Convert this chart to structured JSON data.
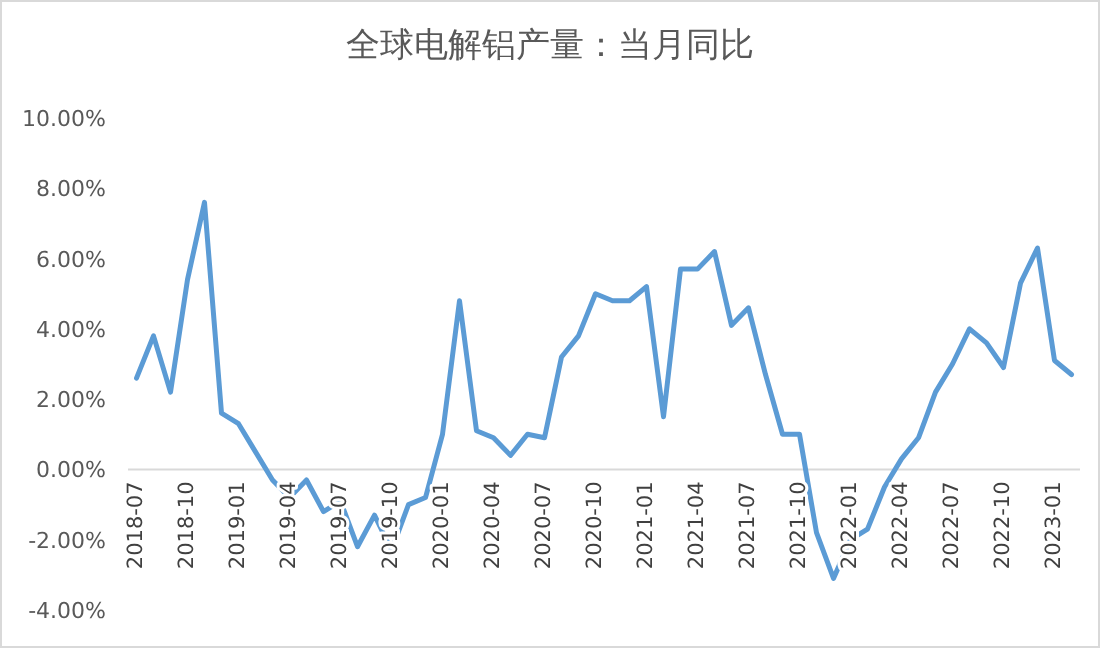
{
  "chart_data": {
    "type": "line",
    "title": "全球电解铝产量：当月同比",
    "x": [
      "2018-07",
      "2018-08",
      "2018-09",
      "2018-10",
      "2018-11",
      "2018-12",
      "2019-01",
      "2019-02",
      "2019-03",
      "2019-04",
      "2019-05",
      "2019-06",
      "2019-07",
      "2019-08",
      "2019-09",
      "2019-10",
      "2019-11",
      "2019-12",
      "2020-01",
      "2020-02",
      "2020-03",
      "2020-04",
      "2020-05",
      "2020-06",
      "2020-07",
      "2020-08",
      "2020-09",
      "2020-10",
      "2020-11",
      "2020-12",
      "2021-01",
      "2021-02",
      "2021-03",
      "2021-04",
      "2021-05",
      "2021-06",
      "2021-07",
      "2021-08",
      "2021-09",
      "2021-10",
      "2021-11",
      "2021-12",
      "2022-01",
      "2022-02",
      "2022-03",
      "2022-04",
      "2022-05",
      "2022-06",
      "2022-07",
      "2022-08",
      "2022-09",
      "2022-10",
      "2022-11",
      "2022-12",
      "2023-01",
      "2023-02"
    ],
    "series": [
      {
        "color": "#5b9bd5",
        "values": [
          2.6,
          3.8,
          2.2,
          5.4,
          7.6,
          1.6,
          1.3,
          0.5,
          -0.3,
          -0.8,
          -0.3,
          -1.2,
          -0.9,
          -2.2,
          -1.3,
          -2.3,
          -1.0,
          -0.8,
          1.0,
          4.8,
          1.1,
          0.9,
          0.4,
          1.0,
          0.9,
          3.2,
          3.8,
          5.0,
          4.8,
          4.8,
          5.2,
          1.5,
          5.7,
          5.7,
          6.2,
          4.1,
          4.6,
          2.7,
          1.0,
          1.0,
          -1.8,
          -3.1,
          -2.0,
          -1.7,
          -0.5,
          0.3,
          0.9,
          2.2,
          3.0,
          4.0,
          3.6,
          2.9,
          5.3,
          6.3,
          3.1,
          2.7
        ]
      }
    ],
    "xlim": [
      "2018-06-16",
      "2023-02-16"
    ],
    "xticks": [
      "2018-07",
      "2018-10",
      "2019-01",
      "2019-04",
      "2019-07",
      "2019-10",
      "2020-01",
      "2020-04",
      "2020-07",
      "2020-10",
      "2021-01",
      "2021-04",
      "2021-07",
      "2021-10",
      "2022-01",
      "2022-04",
      "2022-07",
      "2022-10",
      "2023-01"
    ],
    "ylim": [
      -4,
      10
    ],
    "yticks": [
      {
        "value": -4,
        "label": "-4.00%"
      },
      {
        "value": -2,
        "label": "-2.00%"
      },
      {
        "value": 0,
        "label": "0.00%"
      },
      {
        "value": 2,
        "label": "2.00%"
      },
      {
        "value": 4,
        "label": "4.00%"
      },
      {
        "value": 6,
        "label": "6.00%"
      },
      {
        "value": 8,
        "label": "8.00%"
      },
      {
        "value": 10,
        "label": "10.00%"
      }
    ],
    "grid": false,
    "marker": "none",
    "line_style": "solid"
  }
}
